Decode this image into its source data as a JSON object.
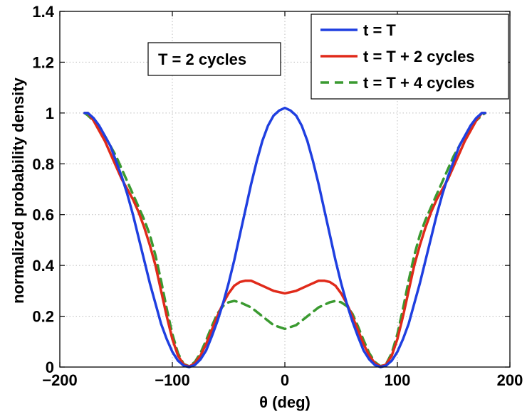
{
  "chart_data": {
    "type": "line",
    "xlabel": "θ (deg)",
    "ylabel": "normalized probability density",
    "xlim": [
      -200,
      200
    ],
    "ylim": [
      0,
      1.4
    ],
    "xticks": [
      -200,
      -100,
      0,
      100,
      200
    ],
    "yticks": [
      0,
      0.2,
      0.4,
      0.6,
      0.8,
      1,
      1.2,
      1.4
    ],
    "xtick_labels": [
      "−200",
      "−100",
      "0",
      "100",
      "200"
    ],
    "ytick_labels": [
      "0",
      "0.2",
      "0.4",
      "0.6",
      "0.8",
      "1",
      "1.2",
      "1.4"
    ],
    "grid": true,
    "legend_position": "top-right",
    "annotation": "T = 2 cycles",
    "series": [
      {
        "name": "t = T",
        "color": "#1f3fe0",
        "dash": "solid",
        "points": [
          [
            0,
            1.02
          ],
          [
            5,
            1.01
          ],
          [
            10,
            0.99
          ],
          [
            15,
            0.95
          ],
          [
            20,
            0.89
          ],
          [
            25,
            0.81
          ],
          [
            30,
            0.72
          ],
          [
            35,
            0.62
          ],
          [
            40,
            0.52
          ],
          [
            45,
            0.42
          ],
          [
            50,
            0.33
          ],
          [
            55,
            0.25
          ],
          [
            60,
            0.18
          ],
          [
            65,
            0.12
          ],
          [
            70,
            0.065
          ],
          [
            75,
            0.03
          ],
          [
            80,
            0.008
          ],
          [
            85,
            0.0
          ],
          [
            90,
            0.006
          ],
          [
            95,
            0.025
          ],
          [
            100,
            0.06
          ],
          [
            105,
            0.11
          ],
          [
            110,
            0.17
          ],
          [
            115,
            0.25
          ],
          [
            120,
            0.33
          ],
          [
            125,
            0.42
          ],
          [
            130,
            0.51
          ],
          [
            135,
            0.6
          ],
          [
            140,
            0.68
          ],
          [
            145,
            0.75
          ],
          [
            150,
            0.81
          ],
          [
            155,
            0.87
          ],
          [
            160,
            0.91
          ],
          [
            165,
            0.95
          ],
          [
            170,
            0.98
          ],
          [
            175,
            1.0
          ],
          [
            178,
            1.0
          ]
        ]
      },
      {
        "name": "t = T + 2 cycles",
        "color": "#e02a1a",
        "dash": "solid",
        "points": [
          [
            0,
            0.29
          ],
          [
            10,
            0.3
          ],
          [
            20,
            0.32
          ],
          [
            30,
            0.34
          ],
          [
            35,
            0.34
          ],
          [
            40,
            0.335
          ],
          [
            45,
            0.32
          ],
          [
            50,
            0.29
          ],
          [
            55,
            0.25
          ],
          [
            60,
            0.2
          ],
          [
            65,
            0.145
          ],
          [
            70,
            0.09
          ],
          [
            75,
            0.045
          ],
          [
            80,
            0.015
          ],
          [
            85,
            0.002
          ],
          [
            90,
            0.01
          ],
          [
            95,
            0.045
          ],
          [
            100,
            0.11
          ],
          [
            105,
            0.2
          ],
          [
            110,
            0.3
          ],
          [
            115,
            0.4
          ],
          [
            120,
            0.48
          ],
          [
            125,
            0.55
          ],
          [
            130,
            0.61
          ],
          [
            135,
            0.66
          ],
          [
            140,
            0.7
          ],
          [
            145,
            0.74
          ],
          [
            150,
            0.79
          ],
          [
            155,
            0.84
          ],
          [
            160,
            0.89
          ],
          [
            165,
            0.93
          ],
          [
            170,
            0.97
          ],
          [
            175,
            1.0
          ],
          [
            178,
            1.0
          ]
        ]
      },
      {
        "name": "t = T + 4 cycles",
        "color": "#3a9a30",
        "dash": "dashed",
        "points": [
          [
            0,
            0.15
          ],
          [
            10,
            0.165
          ],
          [
            20,
            0.2
          ],
          [
            30,
            0.235
          ],
          [
            40,
            0.255
          ],
          [
            45,
            0.26
          ],
          [
            50,
            0.255
          ],
          [
            55,
            0.24
          ],
          [
            60,
            0.21
          ],
          [
            65,
            0.16
          ],
          [
            70,
            0.105
          ],
          [
            75,
            0.055
          ],
          [
            80,
            0.02
          ],
          [
            85,
            0.003
          ],
          [
            90,
            0.012
          ],
          [
            95,
            0.055
          ],
          [
            100,
            0.13
          ],
          [
            105,
            0.23
          ],
          [
            110,
            0.34
          ],
          [
            115,
            0.44
          ],
          [
            120,
            0.52
          ],
          [
            125,
            0.58
          ],
          [
            130,
            0.63
          ],
          [
            135,
            0.68
          ],
          [
            140,
            0.73
          ],
          [
            145,
            0.78
          ],
          [
            150,
            0.83
          ],
          [
            155,
            0.87
          ],
          [
            160,
            0.91
          ],
          [
            165,
            0.94
          ],
          [
            170,
            0.97
          ],
          [
            175,
            0.99
          ],
          [
            178,
            1.0
          ]
        ]
      }
    ]
  }
}
